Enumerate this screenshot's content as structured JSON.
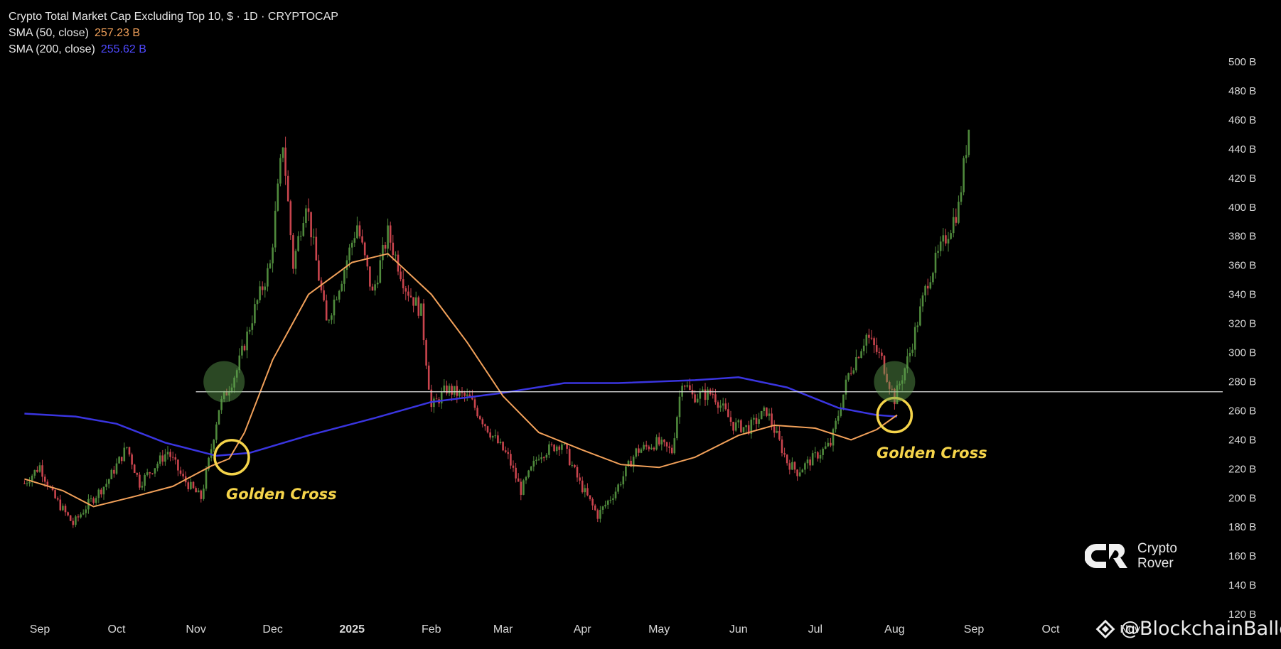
{
  "legend": {
    "title": "Crypto Total Market Cap Excluding Top 10, $ · 1D · CRYPTOCAP",
    "sma50_label": "SMA (50, close)",
    "sma50_value": "257.23 B",
    "sma200_label": "SMA (200, close)",
    "sma200_value": "255.62 B"
  },
  "annotations": {
    "golden_cross_1": "Golden Cross",
    "golden_cross_2": "Golden Cross"
  },
  "logo": {
    "line1": "Crypto",
    "line2": "Rover"
  },
  "watermark": {
    "text": "@BlockchainBaller"
  },
  "colors": {
    "background": "#000000",
    "up": "#4f8a3c",
    "down": "#c9444d",
    "sma50": "#f2a15a",
    "sma200": "#3a35e0",
    "annotation": "#f5d44a"
  },
  "chart_data": {
    "type": "candlestick",
    "title": "Crypto Total Market Cap Excluding Top 10, $ · 1D · CRYPTOCAP",
    "ylim": [
      120,
      510
    ],
    "y_ticks": [
      "500 B",
      "480 B",
      "460 B",
      "440 B",
      "420 B",
      "400 B",
      "380 B",
      "360 B",
      "340 B",
      "320 B",
      "300 B",
      "280 B",
      "260 B",
      "240 B",
      "220 B",
      "200 B",
      "180 B",
      "160 B",
      "140 B",
      "120 B"
    ],
    "y_tick_values": [
      500,
      480,
      460,
      440,
      420,
      400,
      380,
      360,
      340,
      320,
      300,
      280,
      260,
      240,
      220,
      200,
      180,
      160,
      140,
      120
    ],
    "x_ticks": [
      "Sep",
      "Oct",
      "Nov",
      "Dec",
      "2025",
      "Feb",
      "Mar",
      "Apr",
      "May",
      "Jun",
      "Jul",
      "Aug",
      "Sep",
      "Oct",
      "Nov"
    ],
    "x_tick_dates": [
      "2024-09-01",
      "2024-10-01",
      "2024-11-01",
      "2024-12-01",
      "2025-01-01",
      "2025-02-01",
      "2025-03-01",
      "2025-04-01",
      "2025-05-01",
      "2025-06-01",
      "2025-07-01",
      "2025-08-01",
      "2025-09-01",
      "2025-10-01",
      "2025-11-01"
    ],
    "price_path": [
      [
        "2024-08-26",
        210
      ],
      [
        "2024-09-01",
        222
      ],
      [
        "2024-09-06",
        202
      ],
      [
        "2024-09-14",
        182
      ],
      [
        "2024-09-20",
        196
      ],
      [
        "2024-09-27",
        210
      ],
      [
        "2024-10-05",
        235
      ],
      [
        "2024-10-10",
        210
      ],
      [
        "2024-10-16",
        222
      ],
      [
        "2024-10-21",
        232
      ],
      [
        "2024-10-27",
        213
      ],
      [
        "2024-11-03",
        200
      ],
      [
        "2024-11-06",
        225
      ],
      [
        "2024-11-10",
        262
      ],
      [
        "2024-11-17",
        288
      ],
      [
        "2024-11-24",
        330
      ],
      [
        "2024-11-30",
        360
      ],
      [
        "2024-12-05",
        445
      ],
      [
        "2024-12-09",
        360
      ],
      [
        "2024-12-14",
        405
      ],
      [
        "2024-12-22",
        320
      ],
      [
        "2024-12-28",
        352
      ],
      [
        "2025-01-03",
        388
      ],
      [
        "2025-01-09",
        340
      ],
      [
        "2025-01-15",
        382
      ],
      [
        "2025-01-22",
        345
      ],
      [
        "2025-01-28",
        328
      ],
      [
        "2025-02-01",
        262
      ],
      [
        "2025-02-07",
        275
      ],
      [
        "2025-02-16",
        268
      ],
      [
        "2025-02-24",
        245
      ],
      [
        "2025-03-03",
        228
      ],
      [
        "2025-03-08",
        205
      ],
      [
        "2025-03-15",
        230
      ],
      [
        "2025-03-24",
        238
      ],
      [
        "2025-03-31",
        210
      ],
      [
        "2025-04-07",
        188
      ],
      [
        "2025-04-14",
        205
      ],
      [
        "2025-04-22",
        232
      ],
      [
        "2025-04-30",
        238
      ],
      [
        "2025-05-06",
        232
      ],
      [
        "2025-05-10",
        282
      ],
      [
        "2025-05-14",
        270
      ],
      [
        "2025-05-22",
        272
      ],
      [
        "2025-05-30",
        250
      ],
      [
        "2025-06-05",
        248
      ],
      [
        "2025-06-12",
        260
      ],
      [
        "2025-06-20",
        225
      ],
      [
        "2025-06-24",
        218
      ],
      [
        "2025-07-02",
        230
      ],
      [
        "2025-07-07",
        237
      ],
      [
        "2025-07-14",
        285
      ],
      [
        "2025-07-21",
        312
      ],
      [
        "2025-07-27",
        295
      ],
      [
        "2025-08-01",
        268
      ],
      [
        "2025-08-07",
        300
      ],
      [
        "2025-08-14",
        350
      ],
      [
        "2025-08-20",
        375
      ],
      [
        "2025-08-26",
        400
      ],
      [
        "2025-08-30",
        455
      ]
    ],
    "sma50_path": [
      [
        "2024-08-26",
        213
      ],
      [
        "2024-09-10",
        205
      ],
      [
        "2024-09-22",
        194
      ],
      [
        "2024-10-08",
        201
      ],
      [
        "2024-10-23",
        208
      ],
      [
        "2024-11-07",
        222
      ],
      [
        "2024-11-14",
        227
      ],
      [
        "2024-11-20",
        245
      ],
      [
        "2024-12-01",
        295
      ],
      [
        "2024-12-15",
        340
      ],
      [
        "2025-01-01",
        362
      ],
      [
        "2025-01-15",
        368
      ],
      [
        "2025-02-01",
        340
      ],
      [
        "2025-02-15",
        307
      ],
      [
        "2025-03-01",
        270
      ],
      [
        "2025-03-15",
        245
      ],
      [
        "2025-04-01",
        233
      ],
      [
        "2025-04-16",
        223
      ],
      [
        "2025-05-01",
        221
      ],
      [
        "2025-05-15",
        228
      ],
      [
        "2025-06-01",
        243
      ],
      [
        "2025-06-15",
        250
      ],
      [
        "2025-07-01",
        248
      ],
      [
        "2025-07-15",
        240
      ],
      [
        "2025-07-25",
        247
      ],
      [
        "2025-08-02",
        257
      ]
    ],
    "sma200_path": [
      [
        "2024-08-26",
        258
      ],
      [
        "2024-09-15",
        256
      ],
      [
        "2024-10-01",
        251
      ],
      [
        "2024-10-20",
        238
      ],
      [
        "2024-11-09",
        229
      ],
      [
        "2024-11-22",
        231
      ],
      [
        "2024-12-15",
        243
      ],
      [
        "2025-01-10",
        255
      ],
      [
        "2025-02-01",
        266
      ],
      [
        "2025-02-28",
        272
      ],
      [
        "2025-03-25",
        279
      ],
      [
        "2025-04-15",
        279
      ],
      [
        "2025-05-15",
        281
      ],
      [
        "2025-06-01",
        283
      ],
      [
        "2025-06-20",
        276
      ],
      [
        "2025-07-10",
        262
      ],
      [
        "2025-07-25",
        257
      ],
      [
        "2025-08-02",
        256
      ]
    ],
    "horizontal_level": 273,
    "highlight_circles": [
      {
        "date": "2024-11-15",
        "value": 228,
        "style": "yellow-ring"
      },
      {
        "date": "2024-11-12",
        "value": 280,
        "style": "green-fill"
      },
      {
        "date": "2025-08-01",
        "value": 257,
        "style": "yellow-ring"
      },
      {
        "date": "2025-08-01",
        "value": 280,
        "style": "green-fill"
      }
    ]
  }
}
